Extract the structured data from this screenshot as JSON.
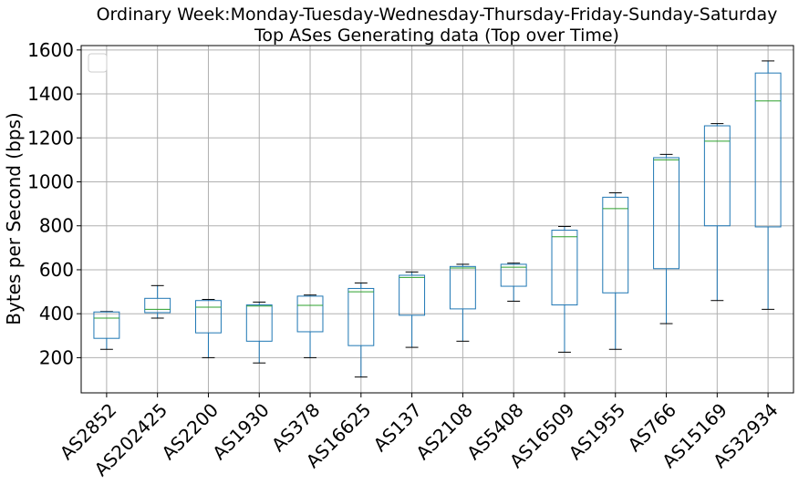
{
  "chart_data": {
    "type": "box",
    "title": "Ordinary Week:Monday-Tuesday-Wednesday-Thursday-Friday-Sunday-Saturday",
    "subtitle": "Top ASes Generating data (Top over Time)",
    "xlabel": "",
    "ylabel": "Bytes per Second (bps)",
    "ylim": [
      40,
      1620
    ],
    "yticks": [
      200,
      400,
      600,
      800,
      1000,
      1200,
      1400,
      1600
    ],
    "grid": true,
    "legend": "top-left (empty)",
    "categories": [
      "AS2852",
      "AS202425",
      "AS2200",
      "AS1930",
      "AS378",
      "AS16625",
      "AS137",
      "AS2108",
      "AS5408",
      "AS16509",
      "AS1955",
      "AS766",
      "AS15169",
      "AS32934"
    ],
    "boxes": [
      {
        "min": 238,
        "q1": 288,
        "median": 380,
        "q3": 408,
        "max": 410
      },
      {
        "min": 380,
        "q1": 405,
        "median": 420,
        "q3": 470,
        "max": 528
      },
      {
        "min": 200,
        "q1": 313,
        "median": 430,
        "q3": 460,
        "max": 465
      },
      {
        "min": 176,
        "q1": 275,
        "median": 435,
        "q3": 440,
        "max": 453
      },
      {
        "min": 200,
        "q1": 318,
        "median": 438,
        "q3": 480,
        "max": 485
      },
      {
        "min": 112,
        "q1": 255,
        "median": 500,
        "q3": 515,
        "max": 540
      },
      {
        "min": 247,
        "q1": 393,
        "median": 565,
        "q3": 575,
        "max": 590
      },
      {
        "min": 275,
        "q1": 422,
        "median": 608,
        "q3": 615,
        "max": 625
      },
      {
        "min": 457,
        "q1": 525,
        "median": 612,
        "q3": 625,
        "max": 630
      },
      {
        "min": 225,
        "q1": 440,
        "median": 750,
        "q3": 780,
        "max": 797
      },
      {
        "min": 238,
        "q1": 495,
        "median": 878,
        "q3": 930,
        "max": 950
      },
      {
        "min": 355,
        "q1": 605,
        "median": 1100,
        "q3": 1110,
        "max": 1125
      },
      {
        "min": 460,
        "q1": 800,
        "median": 1185,
        "q3": 1255,
        "max": 1265
      },
      {
        "min": 420,
        "q1": 795,
        "median": 1368,
        "q3": 1495,
        "max": 1550
      }
    ],
    "colors": {
      "box": "#1f77b4",
      "median": "#2ca02c",
      "cap": "#000000",
      "grid": "#b0b0b0"
    }
  }
}
